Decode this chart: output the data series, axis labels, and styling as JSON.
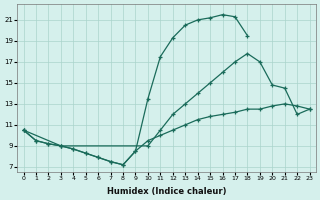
{
  "xlabel": "Humidex (Indice chaleur)",
  "background_color": "#d5f0ec",
  "grid_color": "#aad4cc",
  "line_color": "#1a6b5a",
  "xlim_min": -0.5,
  "xlim_max": 23.5,
  "ylim_min": 6.5,
  "ylim_max": 22.5,
  "xticks": [
    0,
    1,
    2,
    3,
    4,
    5,
    6,
    7,
    8,
    9,
    10,
    11,
    12,
    13,
    14,
    15,
    16,
    17,
    18,
    19,
    20,
    21,
    22,
    23
  ],
  "yticks": [
    7,
    9,
    11,
    13,
    15,
    17,
    19,
    21
  ],
  "line1_x": [
    0,
    1,
    2,
    3,
    4,
    5,
    6,
    7,
    8,
    9,
    10,
    11,
    12,
    13,
    14,
    15,
    16,
    17,
    18
  ],
  "line1_y": [
    10.5,
    9.5,
    9.2,
    9.0,
    8.7,
    8.3,
    7.9,
    7.5,
    7.2,
    8.5,
    13.5,
    17.5,
    19.3,
    20.5,
    21.0,
    21.2,
    21.5,
    21.3,
    19.5
  ],
  "line2_x": [
    0,
    3,
    10,
    11,
    12,
    13,
    14,
    15,
    16,
    17,
    18,
    19,
    20,
    21,
    22,
    23
  ],
  "line2_y": [
    10.5,
    9.0,
    9.0,
    10.5,
    12.0,
    13.0,
    14.0,
    15.0,
    16.0,
    17.0,
    17.8,
    17.0,
    14.8,
    14.5,
    12.0,
    12.5
  ],
  "line3_x": [
    0,
    1,
    2,
    3,
    4,
    5,
    6,
    7,
    8,
    9,
    10,
    11,
    12,
    13,
    14,
    15,
    16,
    17,
    18,
    19,
    20,
    21,
    22,
    23
  ],
  "line3_y": [
    10.5,
    9.5,
    9.2,
    9.0,
    8.7,
    8.3,
    7.9,
    7.5,
    7.2,
    8.5,
    9.5,
    10.0,
    10.5,
    11.0,
    11.5,
    11.8,
    12.0,
    12.2,
    12.5,
    12.5,
    12.8,
    13.0,
    12.8,
    12.5
  ]
}
